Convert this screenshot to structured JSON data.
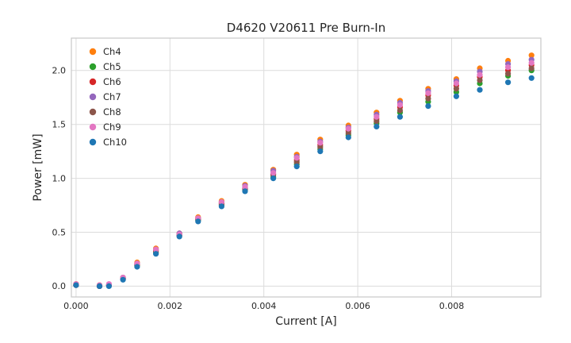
{
  "chart_data": {
    "type": "scatter",
    "title": "D4620 V20611 Pre Burn-In",
    "xlabel": "Current [A]",
    "ylabel": "Power [mW]",
    "xlim": [
      -0.0001,
      0.0099
    ],
    "ylim": [
      -0.1,
      2.3
    ],
    "grid": true,
    "legend_position": "upper left",
    "xticks": [
      0.0,
      0.002,
      0.004,
      0.006,
      0.008
    ],
    "xtick_labels": [
      "0.000",
      "0.002",
      "0.004",
      "0.006",
      "0.008"
    ],
    "yticks": [
      0.0,
      0.5,
      1.0,
      1.5,
      2.0
    ],
    "ytick_labels": [
      "0.0",
      "0.5",
      "1.0",
      "1.5",
      "2.0"
    ],
    "x": [
      0.0,
      0.0005,
      0.0007,
      0.001,
      0.0013,
      0.0017,
      0.0022,
      0.0026,
      0.0031,
      0.0036,
      0.0042,
      0.0047,
      0.0052,
      0.0058,
      0.0064,
      0.0069,
      0.0075,
      0.0081,
      0.0086,
      0.0092,
      0.0097
    ],
    "series": [
      {
        "name": "Ch4",
        "color": "#ff7f0e",
        "values": [
          0.02,
          0.01,
          0.01,
          0.08,
          0.22,
          0.35,
          0.49,
          0.64,
          0.79,
          0.94,
          1.08,
          1.22,
          1.36,
          1.49,
          1.61,
          1.72,
          1.83,
          1.92,
          2.02,
          2.09,
          2.14
        ]
      },
      {
        "name": "Ch5",
        "color": "#2ca02c",
        "values": [
          0.01,
          0.0,
          0.01,
          0.07,
          0.19,
          0.31,
          0.47,
          0.61,
          0.75,
          0.89,
          1.01,
          1.13,
          1.27,
          1.4,
          1.51,
          1.61,
          1.71,
          1.8,
          1.88,
          1.95,
          2.0
        ]
      },
      {
        "name": "Ch6",
        "color": "#d62728",
        "values": [
          0.01,
          0.0,
          0.01,
          0.07,
          0.2,
          0.33,
          0.48,
          0.62,
          0.77,
          0.91,
          1.04,
          1.17,
          1.31,
          1.44,
          1.55,
          1.66,
          1.77,
          1.86,
          1.94,
          2.0,
          2.05
        ]
      },
      {
        "name": "Ch7",
        "color": "#9467bd",
        "values": [
          0.01,
          0.0,
          0.01,
          0.08,
          0.21,
          0.34,
          0.49,
          0.63,
          0.78,
          0.93,
          1.07,
          1.2,
          1.34,
          1.47,
          1.59,
          1.7,
          1.81,
          1.9,
          1.99,
          2.06,
          2.1
        ]
      },
      {
        "name": "Ch8",
        "color": "#8c564b",
        "values": [
          0.01,
          0.0,
          0.01,
          0.07,
          0.2,
          0.32,
          0.47,
          0.62,
          0.76,
          0.9,
          1.03,
          1.15,
          1.29,
          1.42,
          1.53,
          1.63,
          1.74,
          1.83,
          1.91,
          1.97,
          2.02
        ]
      },
      {
        "name": "Ch9",
        "color": "#e377c2",
        "values": [
          0.02,
          0.01,
          0.02,
          0.08,
          0.21,
          0.34,
          0.48,
          0.63,
          0.78,
          0.92,
          1.05,
          1.19,
          1.33,
          1.46,
          1.57,
          1.68,
          1.79,
          1.88,
          1.96,
          2.03,
          2.07
        ]
      },
      {
        "name": "Ch10",
        "color": "#1f77b4",
        "values": [
          0.01,
          0.0,
          0.0,
          0.06,
          0.18,
          0.3,
          0.46,
          0.6,
          0.74,
          0.88,
          1.0,
          1.11,
          1.25,
          1.38,
          1.48,
          1.57,
          1.67,
          1.76,
          1.82,
          1.89,
          1.93
        ]
      }
    ]
  }
}
